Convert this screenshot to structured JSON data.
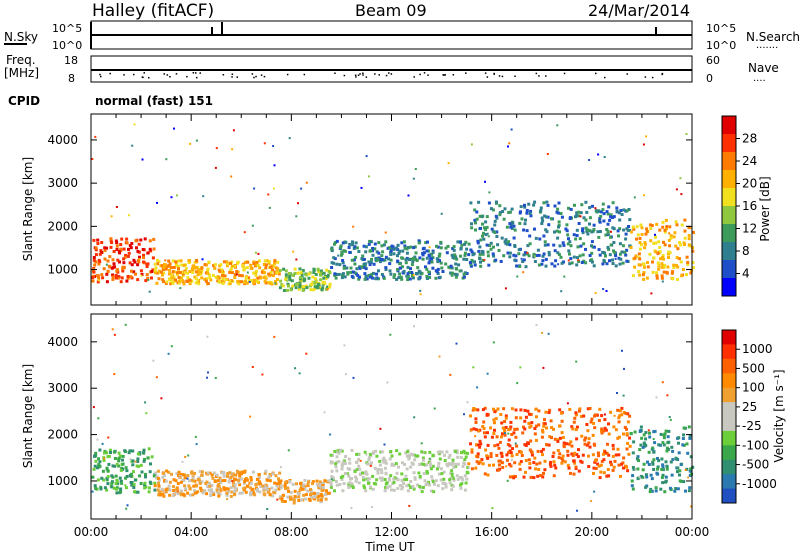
{
  "header": {
    "station": "Halley (fitACF)",
    "beam": "Beam 09",
    "date": "24/Mar/2014"
  },
  "noise_panel": {
    "left_label": "N.Sky",
    "left_ticks": [
      "10^5",
      "10^0"
    ],
    "right_ticks": [
      "10^5",
      "10^0"
    ],
    "right_label": "N.Search",
    "right_dots": "·······"
  },
  "freq_panel": {
    "left_label_line1": "Freq.",
    "left_label_line2": "[MHz]",
    "left_ticks": [
      "18",
      "8"
    ],
    "right_ticks": [
      "60",
      "0"
    ],
    "right_label": "Nave",
    "right_dots": "····"
  },
  "cpid": {
    "label": "CPID",
    "value": "normal (fast) 151"
  },
  "x_axis": {
    "ticks": [
      "00:00",
      "04:00",
      "08:00",
      "12:00",
      "16:00",
      "20:00",
      "00:00"
    ],
    "tick_hours": [
      0,
      4,
      8,
      12,
      16,
      20,
      24
    ],
    "label": "Time UT"
  },
  "y_axis": {
    "label": "Slant Range [km]",
    "ticks": [
      1000,
      2000,
      3000,
      4000
    ],
    "range": [
      180,
      4600
    ]
  },
  "power_colorbar": {
    "label": "Power [dB]",
    "ticks": [
      "28",
      "24",
      "20",
      "16",
      "12",
      "8",
      "4"
    ],
    "colors": [
      "#0000ff",
      "#1e4fc9",
      "#2f7f8f",
      "#3c9a5a",
      "#8fc83f",
      "#f0e020",
      "#ffb000",
      "#ff7a00",
      "#ff3000",
      "#e00000"
    ]
  },
  "velocity_colorbar": {
    "label": "Velocity [m s⁻¹]",
    "ticks": [
      "1000",
      "500",
      "100",
      "25",
      "-25",
      "-100",
      "-500",
      "-1000"
    ],
    "colors": [
      "#1f4fc0",
      "#2a7ab0",
      "#2f8f70",
      "#3aa84a",
      "#6ccf3a",
      "#c8c8c0",
      "#c8c8c0",
      "#f0a030",
      "#ff8a00",
      "#ff6000",
      "#ff3000",
      "#e00000"
    ]
  },
  "chart_data": [
    {
      "type": "heatmap",
      "title": "Power",
      "xlabel": "Time UT",
      "ylabel": "Slant Range [km]",
      "xlim_hours": [
        0,
        24
      ],
      "ylim": [
        180,
        4600
      ],
      "colorbar_ticks_db": [
        4,
        8,
        12,
        16,
        20,
        24,
        28
      ],
      "echo_regions": [
        {
          "t0": 0.0,
          "t1": 2.5,
          "r0": 750,
          "r1": 1750,
          "level": 8
        },
        {
          "t0": 2.5,
          "t1": 7.5,
          "r0": 700,
          "r1": 1250,
          "level": 6
        },
        {
          "t0": 7.5,
          "t1": 9.5,
          "r0": 550,
          "r1": 1050,
          "level": 4
        },
        {
          "t0": 9.5,
          "t1": 15.0,
          "r0": 800,
          "r1": 1700,
          "level": 2
        },
        {
          "t0": 15.0,
          "t1": 21.5,
          "r0": 1100,
          "r1": 2600,
          "level": 2
        },
        {
          "t0": 21.5,
          "t1": 24.0,
          "r0": 800,
          "r1": 2200,
          "level": 6
        }
      ]
    },
    {
      "type": "heatmap",
      "title": "Velocity",
      "xlabel": "Time UT",
      "ylabel": "Slant Range [km]",
      "xlim_hours": [
        0,
        24
      ],
      "ylim": [
        180,
        4600
      ],
      "colorbar_ticks_ms": [
        1000,
        500,
        100,
        25,
        -25,
        -100,
        -500,
        -1000
      ],
      "echo_regions": [
        {
          "t0": 0.0,
          "t1": 2.5,
          "r0": 750,
          "r1": 1750,
          "level": 3
        },
        {
          "t0": 2.5,
          "t1": 7.5,
          "r0": 700,
          "r1": 1250,
          "level": 7
        },
        {
          "t0": 7.5,
          "t1": 9.5,
          "r0": 550,
          "r1": 1050,
          "level": 7
        },
        {
          "t0": 9.5,
          "t1": 15.0,
          "r0": 800,
          "r1": 1700,
          "level": 5
        },
        {
          "t0": 15.0,
          "t1": 21.5,
          "r0": 1100,
          "r1": 2600,
          "level": 9
        },
        {
          "t0": 21.5,
          "t1": 24.0,
          "r0": 800,
          "r1": 2200,
          "level": 2
        }
      ]
    }
  ]
}
